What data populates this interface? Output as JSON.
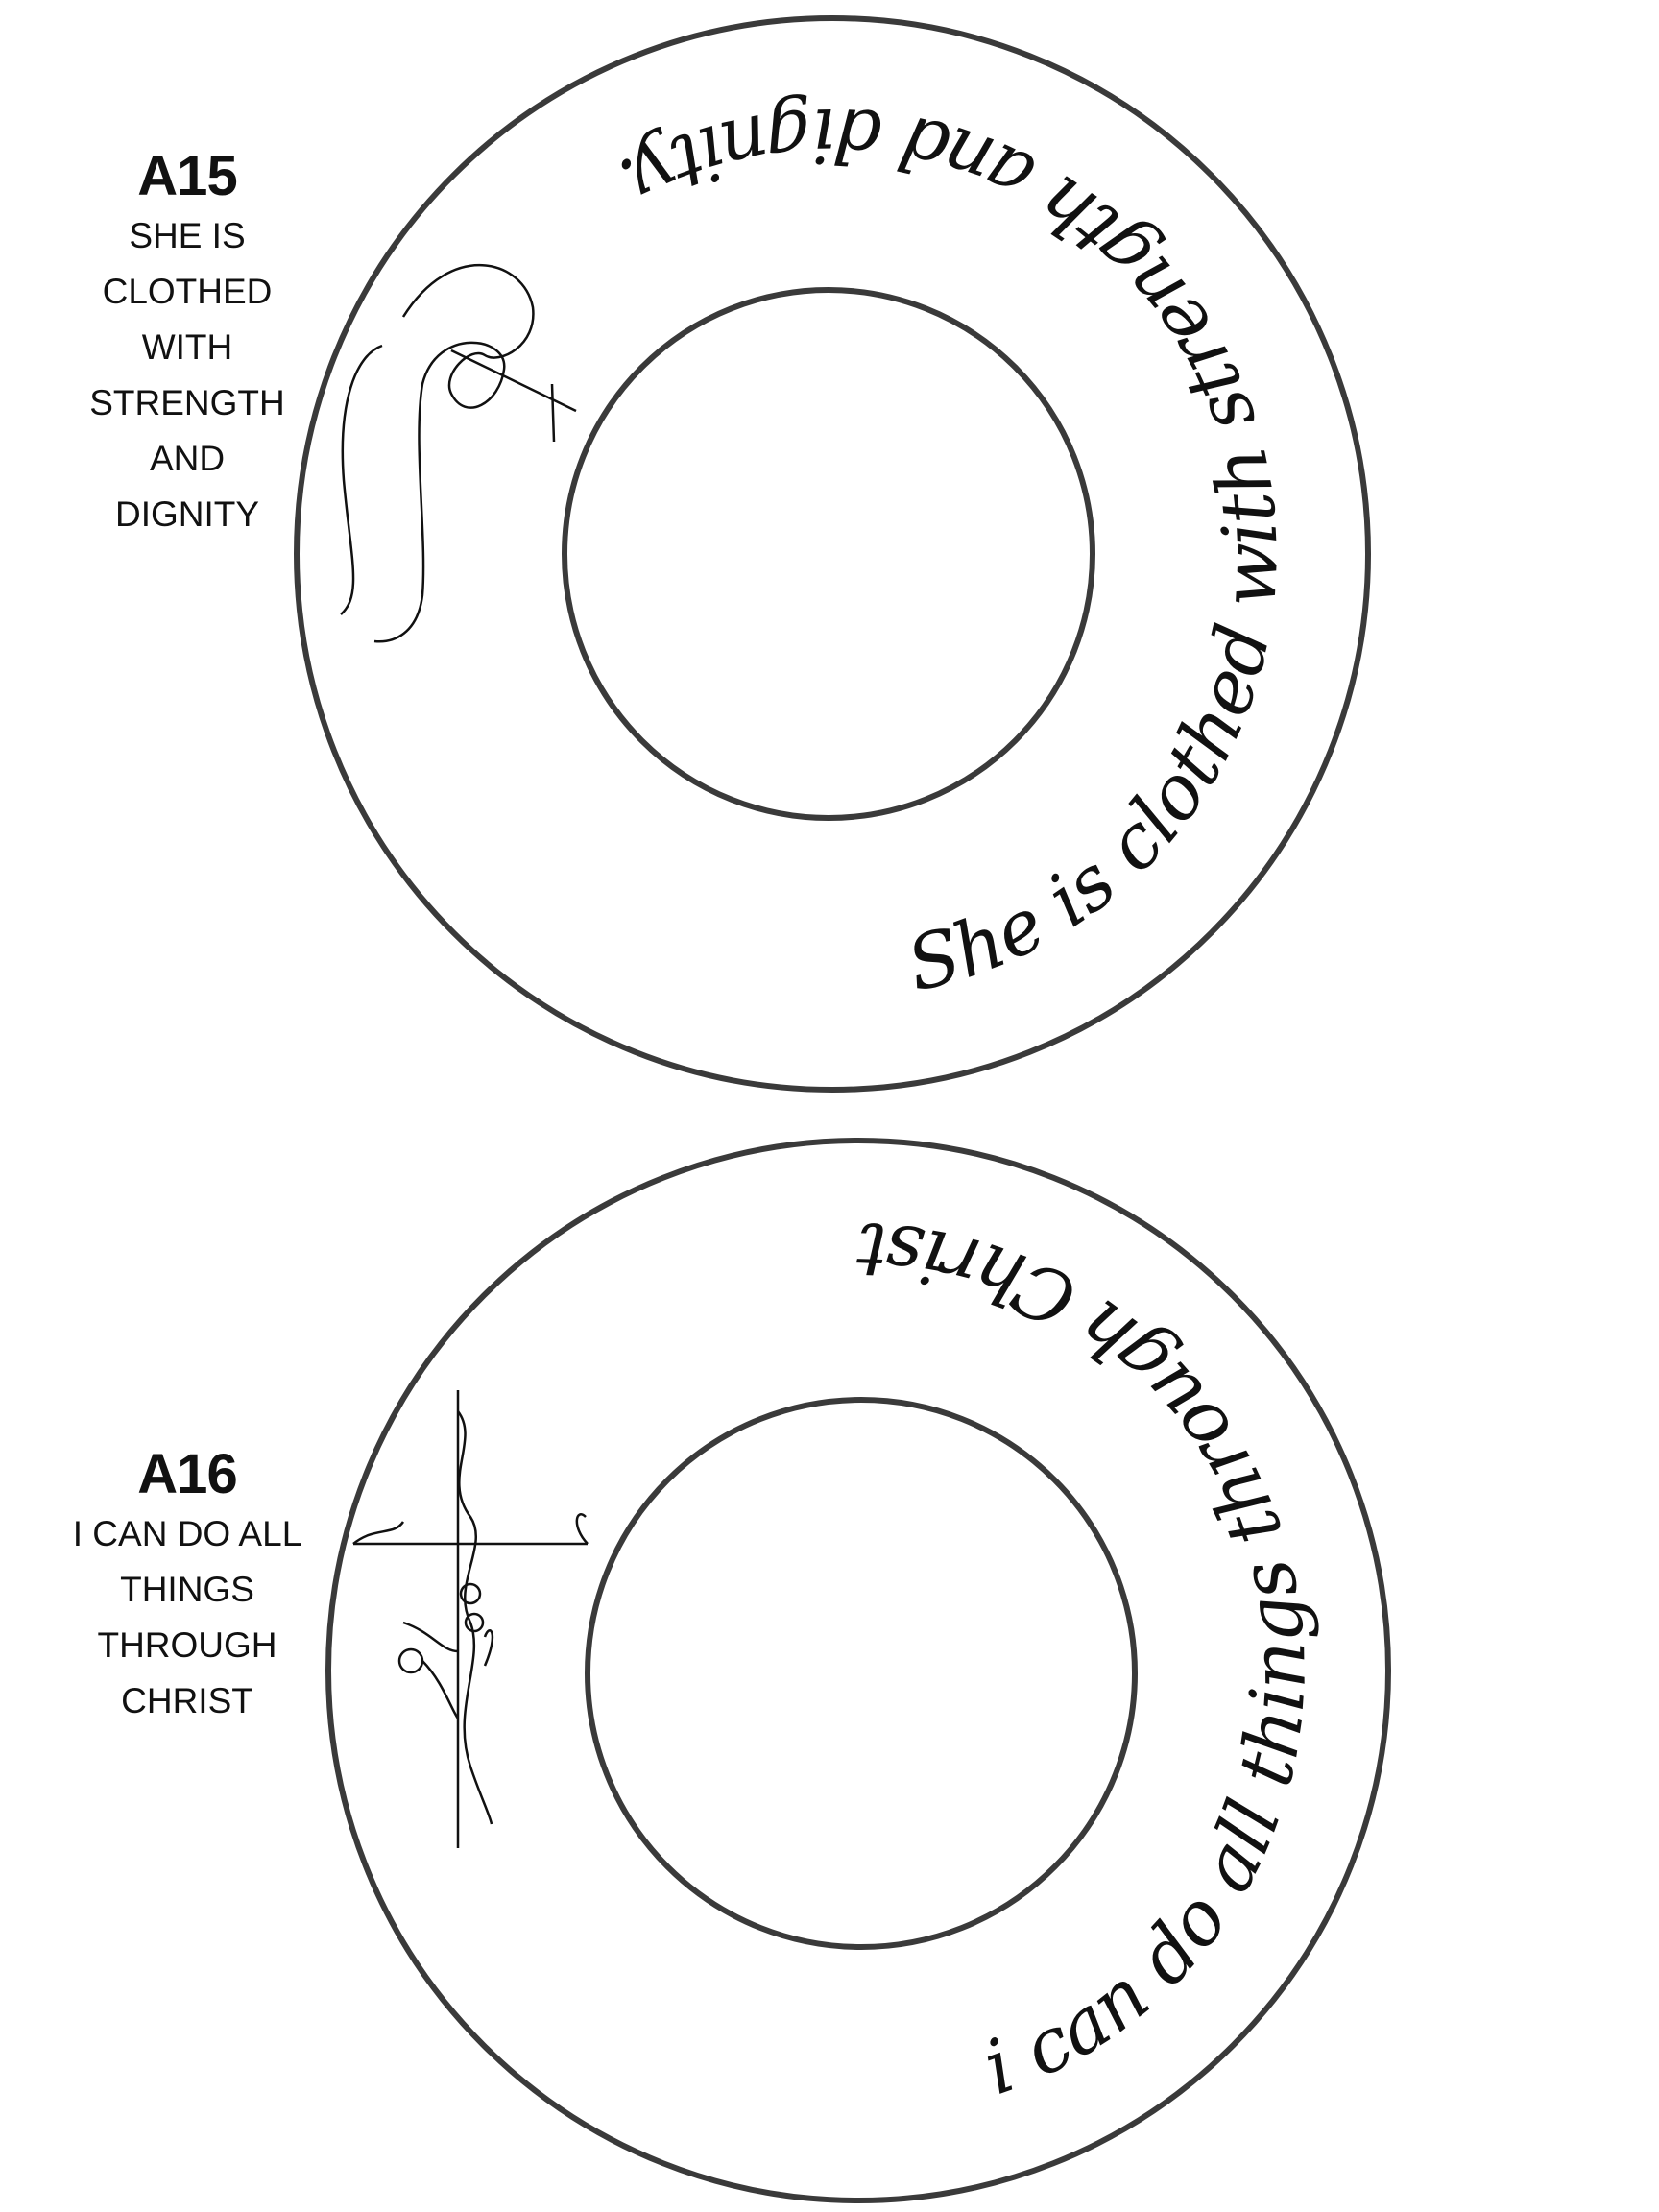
{
  "designs": [
    {
      "code": "A15",
      "caption_lines": [
        "SHE IS",
        "CLOTHED",
        "WITH",
        "STRENGTH",
        "AND",
        "DIGNITY"
      ],
      "curved_text": "She is clothed with strength and dignity.",
      "icon": "ribbon-cross-icon"
    },
    {
      "code": "A16",
      "caption_lines": [
        "I CAN DO ALL",
        "THINGS",
        "THROUGH",
        "CHRIST"
      ],
      "curved_text": "i can do all things through Christ",
      "icon": "floral-cross-icon"
    }
  ],
  "colors": {
    "ring": "#3a3a3a",
    "ink": "#111111"
  }
}
